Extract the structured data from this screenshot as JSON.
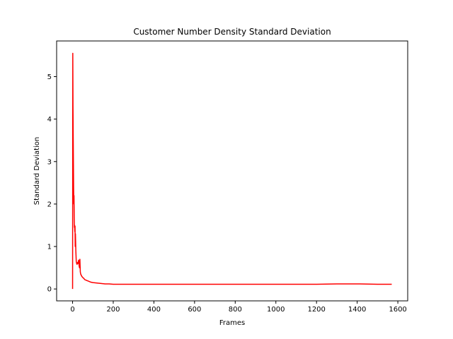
{
  "chart_data": {
    "type": "line",
    "title": "Customer Number Density Standard Deviation",
    "xlabel": "Frames",
    "ylabel": "Standard Deviation",
    "xlim": [
      -78.5,
      1648.5
    ],
    "ylim": [
      -0.28,
      5.84
    ],
    "xticks": [
      0,
      200,
      400,
      600,
      800,
      1000,
      1200,
      1400,
      1600
    ],
    "yticks": [
      0,
      1,
      2,
      3,
      4,
      5
    ],
    "grid": false,
    "color": "#ff0000",
    "series": [
      {
        "x": [
          0,
          1,
          2,
          3,
          4,
          5,
          6,
          7,
          8,
          9,
          10,
          11,
          12,
          13,
          14,
          15,
          16,
          18,
          20,
          22,
          24,
          26,
          28,
          30,
          32,
          34,
          36,
          38,
          40,
          45,
          50,
          55,
          60,
          70,
          80,
          90,
          100,
          120,
          140,
          160,
          180,
          200,
          250,
          300,
          400,
          500,
          600,
          700,
          800,
          900,
          1000,
          1100,
          1200,
          1300,
          1400,
          1500,
          1570
        ],
        "y": [
          0.0,
          5.55,
          4.3,
          3.6,
          3.0,
          2.4,
          2.0,
          2.2,
          1.7,
          1.45,
          1.5,
          1.35,
          1.48,
          1.0,
          1.3,
          1.1,
          0.9,
          0.65,
          0.6,
          0.58,
          0.62,
          0.6,
          0.65,
          0.68,
          0.55,
          0.5,
          0.7,
          0.4,
          0.35,
          0.3,
          0.27,
          0.25,
          0.22,
          0.2,
          0.18,
          0.16,
          0.15,
          0.14,
          0.13,
          0.12,
          0.12,
          0.11,
          0.11,
          0.11,
          0.11,
          0.11,
          0.11,
          0.11,
          0.11,
          0.11,
          0.11,
          0.11,
          0.11,
          0.12,
          0.12,
          0.11,
          0.11
        ]
      }
    ]
  }
}
